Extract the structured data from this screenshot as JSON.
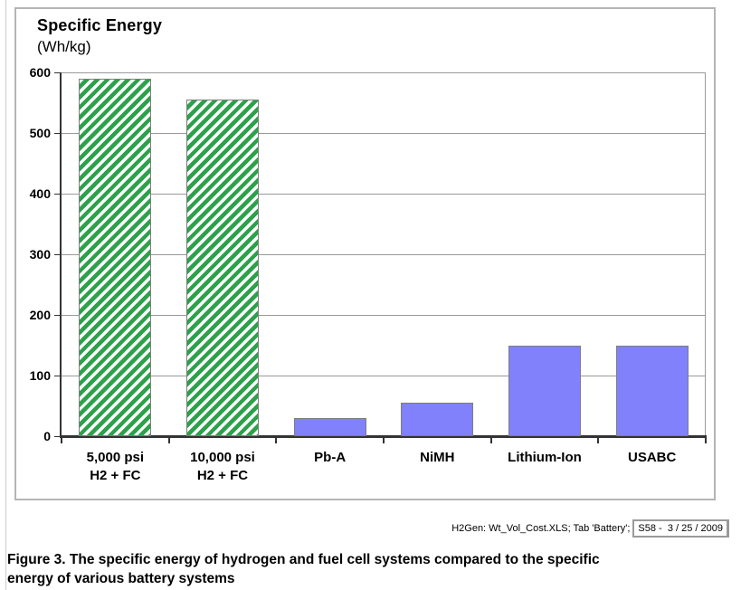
{
  "chart_data": {
    "type": "bar",
    "title": "Specific Energy",
    "unit_label": "(Wh/kg)",
    "categories": [
      {
        "id": "5000-psi-h2-fc",
        "lines": [
          "5,000 psi",
          "H2 + FC"
        ]
      },
      {
        "id": "10000-psi-h2-fc",
        "lines": [
          "10,000 psi",
          "H2 + FC"
        ]
      },
      {
        "id": "pb-a",
        "lines": [
          "Pb-A"
        ]
      },
      {
        "id": "nimh",
        "lines": [
          "NiMH"
        ]
      },
      {
        "id": "lithium-ion",
        "lines": [
          "Lithium-Ion"
        ]
      },
      {
        "id": "usabc",
        "lines": [
          "USABC"
        ]
      }
    ],
    "values": [
      590,
      555,
      30,
      55,
      150,
      150
    ],
    "bar_styles": [
      "green-hatched",
      "green-hatched",
      "solid-periwinkle",
      "solid-periwinkle",
      "solid-periwinkle",
      "solid-periwinkle"
    ],
    "ylim": [
      0,
      600
    ],
    "yticks": [
      0,
      100,
      200,
      300,
      400,
      500,
      600
    ],
    "grid": true,
    "legend": "none",
    "colors": {
      "hatch_green": "#2ca14a",
      "bar_periwinkle": "#8181fb",
      "bar_border": "#7e7e7e",
      "gridline": "#9a9a9a",
      "axis": "#333333",
      "outer_box_border": "#b5b5b5"
    }
  },
  "footer": {
    "source_text": "H2Gen: Wt_Vol_Cost.XLS; Tab 'Battery';",
    "source_ref_boxed": "S58 -  3 / 25 / 2009"
  },
  "caption": {
    "line1": "Figure 3.  The specific energy of hydrogen and fuel cell systems compared to the specific",
    "line2": "energy of various battery systems"
  }
}
